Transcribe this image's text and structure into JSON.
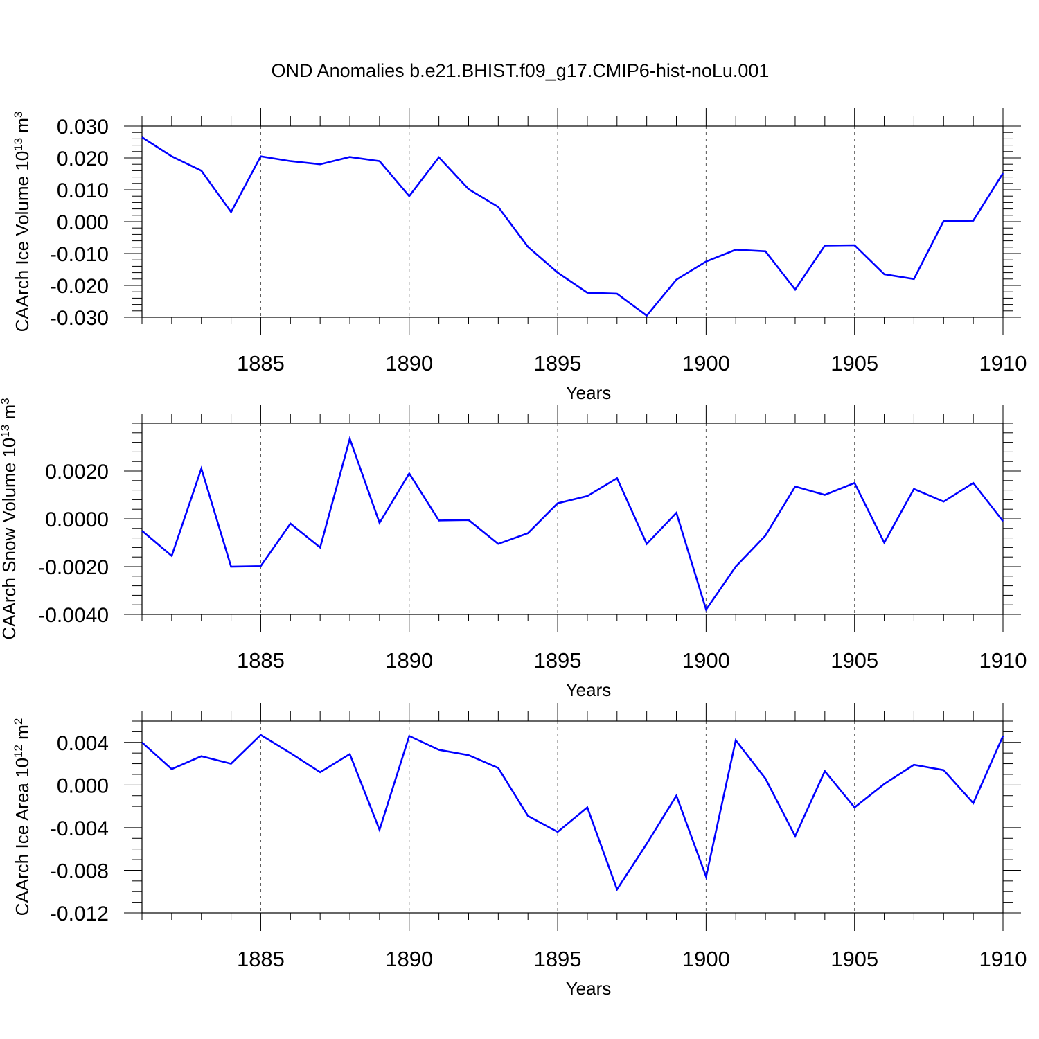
{
  "title": "OND Anomalies b.e21.BHIST.f09_g17.CMIP6-hist-noLu.001",
  "colors": {
    "line": "#0000ff",
    "frame": "#000000",
    "grid": "#000000"
  },
  "chart_data": [
    {
      "type": "line",
      "ylabel_main": "CAArch Ice Volume 10",
      "ylabel_exp": "13",
      "ylabel_unit": " m",
      "ylabel_unit_exp": "3",
      "xlabel": "Years",
      "xlim": [
        1881,
        1910
      ],
      "ylim": [
        -0.03,
        0.03
      ],
      "xticks": [
        1885,
        1890,
        1895,
        1900,
        1905,
        1910
      ],
      "yticks": [
        -0.03,
        -0.02,
        -0.01,
        0.0,
        0.01,
        0.02,
        0.03
      ],
      "ytick_labels": [
        "-0.030",
        "-0.020",
        "-0.010",
        "0.000",
        "0.010",
        "0.020",
        "0.030"
      ],
      "xgrid_dashed": true,
      "series": [
        {
          "x": [
            1881,
            1882,
            1883,
            1884,
            1885,
            1886,
            1887,
            1888,
            1889,
            1890,
            1891,
            1892,
            1893,
            1894,
            1895,
            1896,
            1897,
            1898,
            1899,
            1900,
            1901,
            1902,
            1903,
            1904,
            1905,
            1906,
            1907,
            1908,
            1909,
            1910
          ],
          "values": [
            0.0265,
            0.0205,
            0.016,
            0.003,
            0.0205,
            0.019,
            0.018,
            0.0203,
            0.019,
            0.008,
            0.0202,
            0.0102,
            0.0046,
            -0.0079,
            -0.016,
            -0.0223,
            -0.0226,
            -0.0295,
            -0.0182,
            -0.0125,
            -0.0088,
            -0.0093,
            -0.0213,
            -0.0075,
            -0.0074,
            -0.0165,
            -0.018,
            0.0002,
            0.0003,
            0.0152
          ]
        }
      ]
    },
    {
      "type": "line",
      "ylabel_main": "CAArch Snow Volume 10",
      "ylabel_exp": "13",
      "ylabel_unit": " m",
      "ylabel_unit_exp": "3",
      "xlabel": "Years",
      "xlim": [
        1881,
        1910
      ],
      "ylim": [
        -0.004,
        0.004
      ],
      "xticks": [
        1885,
        1890,
        1895,
        1900,
        1905,
        1910
      ],
      "yticks": [
        -0.004,
        -0.002,
        0.0,
        0.002
      ],
      "ytick_labels": [
        "-0.0040",
        "-0.0020",
        "0.0000",
        "0.0020"
      ],
      "xgrid_dashed": true,
      "series": [
        {
          "x": [
            1881,
            1882,
            1883,
            1884,
            1885,
            1886,
            1887,
            1888,
            1889,
            1890,
            1891,
            1892,
            1893,
            1894,
            1895,
            1896,
            1897,
            1898,
            1899,
            1900,
            1901,
            1902,
            1903,
            1904,
            1905,
            1906,
            1907,
            1908,
            1909,
            1910
          ],
          "values": [
            -0.0005,
            -0.00155,
            0.0021,
            -0.002,
            -0.00198,
            -0.0002,
            -0.0012,
            0.00335,
            -0.00017,
            0.0019,
            -7e-05,
            -5e-05,
            -0.00105,
            -0.0006,
            0.00065,
            0.00095,
            0.0017,
            -0.00105,
            0.00025,
            -0.0038,
            -0.002,
            -0.0007,
            0.00135,
            0.001,
            0.0015,
            -0.001,
            0.00125,
            0.00072,
            0.0015,
            -0.0001
          ]
        }
      ]
    },
    {
      "type": "line",
      "ylabel_main": "CAArch Ice Area 10",
      "ylabel_exp": "12",
      "ylabel_unit": " m",
      "ylabel_unit_exp": "2",
      "xlabel": "Years",
      "xlim": [
        1881,
        1910
      ],
      "ylim": [
        -0.012,
        0.006
      ],
      "xticks": [
        1885,
        1890,
        1895,
        1900,
        1905,
        1910
      ],
      "yticks": [
        -0.012,
        -0.008,
        -0.004,
        0.0,
        0.004
      ],
      "ytick_labels": [
        "-0.012",
        "-0.008",
        "-0.004",
        "0.000",
        "0.004"
      ],
      "xgrid_dashed": true,
      "series": [
        {
          "x": [
            1881,
            1882,
            1883,
            1884,
            1885,
            1886,
            1887,
            1888,
            1889,
            1890,
            1891,
            1892,
            1893,
            1894,
            1895,
            1896,
            1897,
            1898,
            1899,
            1900,
            1901,
            1902,
            1903,
            1904,
            1905,
            1906,
            1907,
            1908,
            1909,
            1910
          ],
          "values": [
            0.004,
            0.0015,
            0.0027,
            0.002,
            0.0047,
            0.003,
            0.0012,
            0.0029,
            -0.0042,
            0.0046,
            0.0033,
            0.0028,
            0.0016,
            -0.0029,
            -0.0044,
            -0.0021,
            -0.0098,
            -0.0055,
            -0.001,
            -0.0086,
            0.0042,
            0.0006,
            -0.0048,
            0.0013,
            -0.0021,
            0.0001,
            0.0019,
            0.0014,
            -0.0017,
            0.0046
          ]
        }
      ]
    }
  ]
}
